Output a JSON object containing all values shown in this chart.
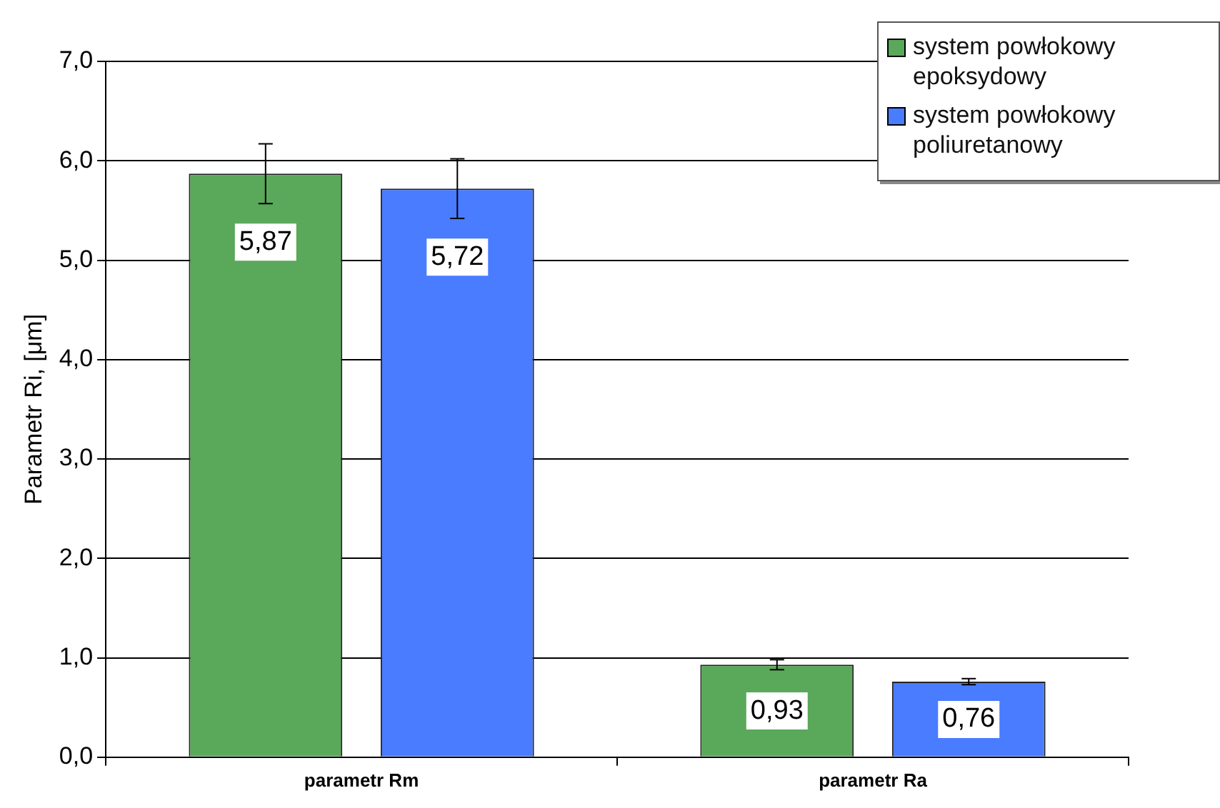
{
  "chart_data": {
    "type": "bar",
    "ylabel": "Parametr Ri, [μm]",
    "categories": [
      "parametr Rm",
      "parametr Ra"
    ],
    "series": [
      {
        "name": "system powłokowy epoksydowy",
        "color": "#5aa85a",
        "values": [
          5.87,
          0.93
        ],
        "errors": [
          0.3,
          0.05
        ],
        "value_labels": [
          "5,87",
          "0,93"
        ]
      },
      {
        "name": "system powłokowy poliuretanowy",
        "color": "#4a7cff",
        "values": [
          5.72,
          0.76
        ],
        "errors": [
          0.3,
          0.03
        ],
        "value_labels": [
          "5,72",
          "0,76"
        ]
      }
    ],
    "ylim": [
      0,
      7
    ],
    "yticks": [
      {
        "value": 0,
        "label": "0,0"
      },
      {
        "value": 1,
        "label": "1,0"
      },
      {
        "value": 2,
        "label": "2,0"
      },
      {
        "value": 3,
        "label": "3,0"
      },
      {
        "value": 4,
        "label": "4,0"
      },
      {
        "value": 5,
        "label": "5,0"
      },
      {
        "value": 6,
        "label": "6,0"
      },
      {
        "value": 7,
        "label": "7,0"
      }
    ],
    "grid": "y",
    "legend": "top right"
  }
}
